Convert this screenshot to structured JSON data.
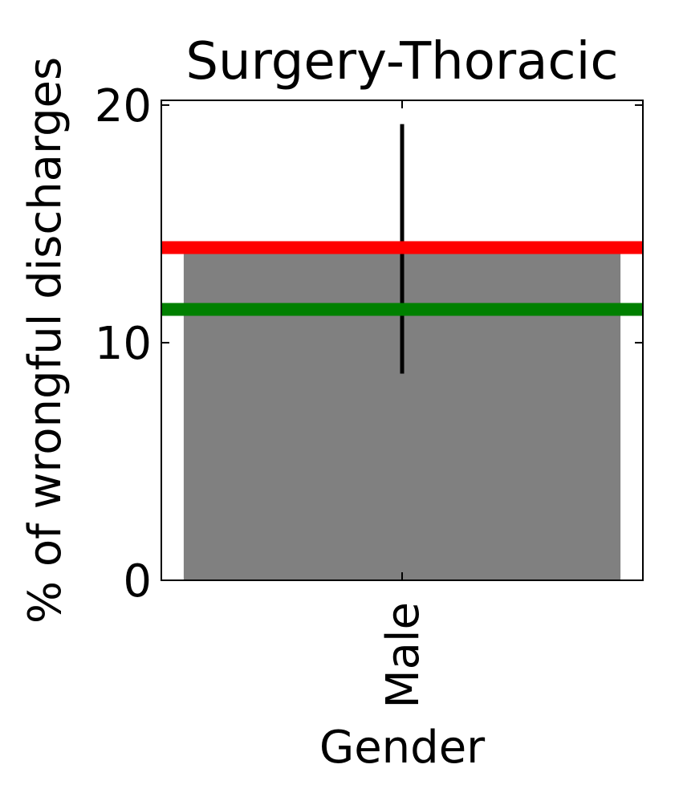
{
  "chart_data": {
    "type": "bar",
    "title": "Surgery-Thoracic",
    "xlabel": "Gender",
    "ylabel": "% of wrongful discharges",
    "categories": [
      "Male"
    ],
    "series": [
      {
        "values": [
          13.8
        ],
        "error": [
          [
            8.7,
            19.2
          ]
        ],
        "color": "#808080"
      }
    ],
    "reference_lines": [
      {
        "value": 14.0,
        "color": "#ff0000"
      },
      {
        "value": 11.4,
        "color": "#008000"
      }
    ],
    "ylim": [
      0,
      20.2
    ],
    "yticks": [
      0,
      10,
      20
    ],
    "grid": false,
    "legend": "none"
  }
}
